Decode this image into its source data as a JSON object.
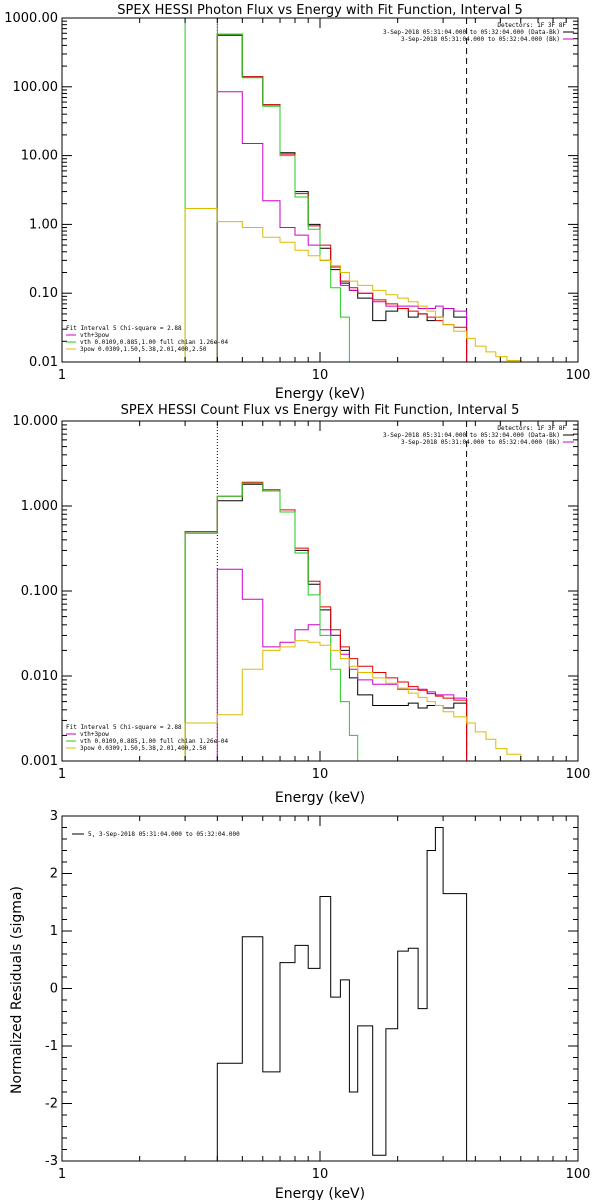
{
  "colors": {
    "black": "#000000",
    "red": "#e00000",
    "green": "#22cc22",
    "magenta": "#cc00cc",
    "yellow": "#ddbb00"
  },
  "chart_data": [
    {
      "type": "line",
      "step": true,
      "title": "SPEX HESSI Photon Flux vs Energy with Fit Function, Interval 5",
      "xlabel": "Energy (keV)",
      "ylabel": "",
      "xscale": "log",
      "yscale": "log",
      "xlim": [
        1,
        100
      ],
      "ylim": [
        0.01,
        1000
      ],
      "xticks": [
        1,
        10,
        100
      ],
      "xtick_labels": [
        "1",
        "10",
        "100"
      ],
      "yticks": [
        0.01,
        0.1,
        1,
        10,
        100,
        1000
      ],
      "ytick_labels": [
        "0.01",
        "0.10",
        "1.00",
        "10.00",
        "100.00",
        "1000.00"
      ],
      "legend": {
        "position": "bottom-left",
        "header": "Fit Interval 5   Chi-square = 2.88",
        "entries": [
          {
            "label": "vth+3pow",
            "color": "magenta"
          },
          {
            "label": "vth 0.0109,0.885,1.00  full chian 1.26e-04",
            "color": "green"
          },
          {
            "label": "3pow 0.0309,1.50,5.38,2.01,400,2.50",
            "color": "yellow"
          }
        ]
      },
      "legend_top": {
        "position": "top-right",
        "header": "Detectors: 1F 3F 8F",
        "entries": [
          {
            "label": "3-Sep-2018 05:31:04.000 to 05:32:04.000 (Data-Bk)",
            "color": "black"
          },
          {
            "label": "3-Sep-2018 05:31:04.000 to 05:32:04.000 (Bk)",
            "color": "magenta"
          }
        ]
      },
      "vlines": [
        {
          "x": 3.0,
          "color": "green",
          "style": "solid"
        },
        {
          "x": 4.0,
          "color": "green",
          "style": "solid"
        },
        {
          "x": 4.0,
          "color": "magenta",
          "style": "dotted"
        },
        {
          "x": 37,
          "color": "black",
          "style": "dashed"
        }
      ],
      "edges": [
        3.0,
        4.0,
        5.0,
        6.0,
        7.0,
        8.0,
        9.0,
        10.0,
        11.0,
        12.0,
        13.0,
        14.0,
        16.0,
        18.0,
        20.0,
        22.0,
        24.0,
        26.0,
        28.0,
        30.0,
        33.0,
        37.0,
        40.0,
        44.0,
        48.0,
        53.0,
        60.0,
        70.0
      ],
      "series": [
        {
          "name": "Data-Bk",
          "color": "black",
          "values": [
            null,
            560,
            140,
            55,
            11,
            3.0,
            1.0,
            0.45,
            0.22,
            0.14,
            0.11,
            0.085,
            0.04,
            0.055,
            0.06,
            0.045,
            0.05,
            0.04,
            0.045,
            0.06,
            0.045,
            null,
            null,
            null,
            null,
            null,
            null
          ]
        },
        {
          "name": "Bk",
          "color": "magenta",
          "values": [
            null,
            85,
            15,
            2.2,
            0.9,
            0.7,
            0.5,
            0.3,
            0.24,
            0.13,
            0.11,
            0.1,
            0.075,
            0.065,
            0.065,
            0.065,
            0.06,
            0.06,
            0.065,
            0.06,
            0.055,
            null,
            null,
            null,
            null,
            null,
            null
          ]
        },
        {
          "name": "vth+3pow",
          "color": "red",
          "values": [
            null,
            580,
            140,
            55,
            10.5,
            2.8,
            0.95,
            0.5,
            0.24,
            0.15,
            0.12,
            0.1,
            0.08,
            0.07,
            0.06,
            0.055,
            0.05,
            0.045,
            0.04,
            0.035,
            0.032,
            null,
            null,
            null,
            null,
            null,
            null
          ]
        },
        {
          "name": "vth",
          "color": "green",
          "values": [
            null,
            580,
            135,
            52,
            10,
            2.5,
            0.85,
            0.3,
            0.12,
            0.045,
            null,
            null,
            null,
            null,
            null,
            null,
            null,
            null,
            null,
            null,
            null,
            null,
            null,
            null,
            null,
            null,
            null
          ]
        },
        {
          "name": "3pow",
          "color": "yellow",
          "values": [
            1.7,
            1.1,
            0.9,
            0.65,
            0.55,
            0.42,
            0.35,
            0.3,
            0.25,
            0.2,
            0.15,
            0.13,
            0.11,
            0.095,
            0.085,
            0.075,
            0.065,
            0.055,
            0.045,
            0.035,
            0.028,
            0.022,
            0.017,
            0.014,
            0.012,
            0.0105,
            null
          ]
        }
      ]
    },
    {
      "type": "line",
      "step": true,
      "title": "SPEX HESSI Count Flux vs Energy with Fit Function, Interval 5",
      "xlabel": "Energy (keV)",
      "ylabel": "",
      "xscale": "log",
      "yscale": "log",
      "xlim": [
        1,
        100
      ],
      "ylim": [
        0.001,
        10
      ],
      "xticks": [
        1,
        10,
        100
      ],
      "xtick_labels": [
        "1",
        "10",
        "100"
      ],
      "yticks": [
        0.001,
        0.01,
        0.1,
        1,
        10
      ],
      "ytick_labels": [
        "0.001",
        "0.010",
        "0.100",
        "1.000",
        "10.000"
      ],
      "legend": {
        "position": "bottom-left",
        "header": "Fit Interval 5   Chi-square = 2.88",
        "entries": [
          {
            "label": "vth+3pow",
            "color": "magenta"
          },
          {
            "label": "vth 0.0109,0.885,1.00  full chian 1.26e-04",
            "color": "green"
          },
          {
            "label": "3pow 0.0309,1.50,5.38,2.01,400,2.50",
            "color": "yellow"
          }
        ]
      },
      "legend_top": {
        "position": "top-right",
        "header": "Detectors: 1F 3F 8F",
        "entries": [
          {
            "label": "3-Sep-2018 05:31:04.000 to 05:32:04.000 (Data-Bk)",
            "color": "black"
          },
          {
            "label": "3-Sep-2018 05:31:04.000 to 05:32:04.000 (Bk)",
            "color": "magenta"
          }
        ]
      },
      "vlines": [
        {
          "x": 4.0,
          "color": "black",
          "style": "dotted"
        },
        {
          "x": 37,
          "color": "black",
          "style": "dashed"
        }
      ],
      "edges": [
        3.0,
        4.0,
        5.0,
        6.0,
        7.0,
        8.0,
        9.0,
        10.0,
        11.0,
        12.0,
        13.0,
        14.0,
        16.0,
        18.0,
        20.0,
        22.0,
        24.0,
        26.0,
        28.0,
        30.0,
        33.0,
        37.0,
        40.0,
        44.0,
        48.0,
        53.0,
        60.0,
        70.0
      ],
      "series": [
        {
          "name": "Data-Bk",
          "color": "black",
          "values": [
            0.48,
            1.15,
            1.8,
            1.5,
            0.85,
            0.3,
            0.12,
            0.06,
            0.03,
            0.02,
            0.0095,
            0.006,
            0.0045,
            0.0045,
            0.0045,
            0.0048,
            0.0042,
            0.0045,
            0.0045,
            0.0042,
            0.0048,
            null,
            null,
            null,
            null,
            null,
            null
          ]
        },
        {
          "name": "Bk",
          "color": "magenta",
          "values": [
            null,
            0.18,
            0.08,
            0.022,
            0.025,
            0.035,
            0.04,
            0.035,
            0.03,
            0.018,
            0.012,
            0.009,
            0.008,
            0.008,
            0.007,
            0.007,
            0.007,
            0.0065,
            0.006,
            0.006,
            0.0055,
            null,
            null,
            null,
            null,
            null,
            null
          ]
        },
        {
          "name": "vth+3pow",
          "color": "red",
          "values": [
            0.5,
            1.3,
            1.9,
            1.55,
            0.9,
            0.32,
            0.13,
            0.065,
            0.035,
            0.022,
            0.016,
            0.013,
            0.011,
            0.0095,
            0.0085,
            0.0075,
            0.0068,
            0.0062,
            0.0058,
            0.0055,
            0.0052,
            null,
            null,
            null,
            null,
            null,
            null
          ]
        },
        {
          "name": "vth",
          "color": "green",
          "values": [
            0.48,
            1.3,
            1.85,
            1.5,
            0.85,
            0.28,
            0.09,
            0.03,
            0.012,
            0.005,
            0.002,
            0.001,
            null,
            null,
            null,
            null,
            null,
            null,
            null,
            null,
            null,
            null,
            null,
            null,
            null,
            null,
            null
          ]
        },
        {
          "name": "3pow",
          "color": "yellow",
          "values": [
            0.0028,
            0.0035,
            0.012,
            0.02,
            0.022,
            0.026,
            0.025,
            0.023,
            0.02,
            0.016,
            0.013,
            0.011,
            0.0095,
            0.0082,
            0.0072,
            0.0063,
            0.0056,
            0.005,
            0.0045,
            0.0038,
            0.0033,
            0.0028,
            0.0022,
            0.0018,
            0.0014,
            0.0012,
            0.001
          ]
        }
      ]
    },
    {
      "type": "line",
      "step": true,
      "title": "",
      "xlabel": "Energy (keV)",
      "ylabel": "Normalized Residuals (sigma)",
      "xscale": "log",
      "yscale": "linear",
      "xlim": [
        1,
        100
      ],
      "ylim": [
        -3,
        3
      ],
      "xticks": [
        1,
        10,
        100
      ],
      "xtick_labels": [
        "1",
        "10",
        "100"
      ],
      "yticks": [
        -3,
        -2,
        -1,
        0,
        1,
        2,
        3
      ],
      "ytick_labels": [
        "-3",
        "-2",
        "-1",
        "0",
        "1",
        "2",
        "3"
      ],
      "legend": {
        "position": "top-left",
        "entries": [
          {
            "label": "5,  3-Sep-2018 05:31:04.000 to 05:32:04.000",
            "color": "black"
          }
        ]
      },
      "edges": [
        4.0,
        5.0,
        6.0,
        7.0,
        8.0,
        9.0,
        10.0,
        11.0,
        12.0,
        13.0,
        14.0,
        16.0,
        18.0,
        20.0,
        22.0,
        24.0,
        26.0,
        28.0,
        30.0,
        33.0,
        37.0
      ],
      "series": [
        {
          "name": "",
          "color": "black",
          "values": [
            -1.3,
            0.9,
            -1.45,
            0.45,
            0.75,
            0.35,
            1.6,
            -0.15,
            0.15,
            -1.8,
            -0.65,
            -2.9,
            -0.7,
            0.65,
            0.7,
            -0.35,
            2.4,
            2.8,
            1.65,
            1.65
          ]
        }
      ]
    }
  ]
}
